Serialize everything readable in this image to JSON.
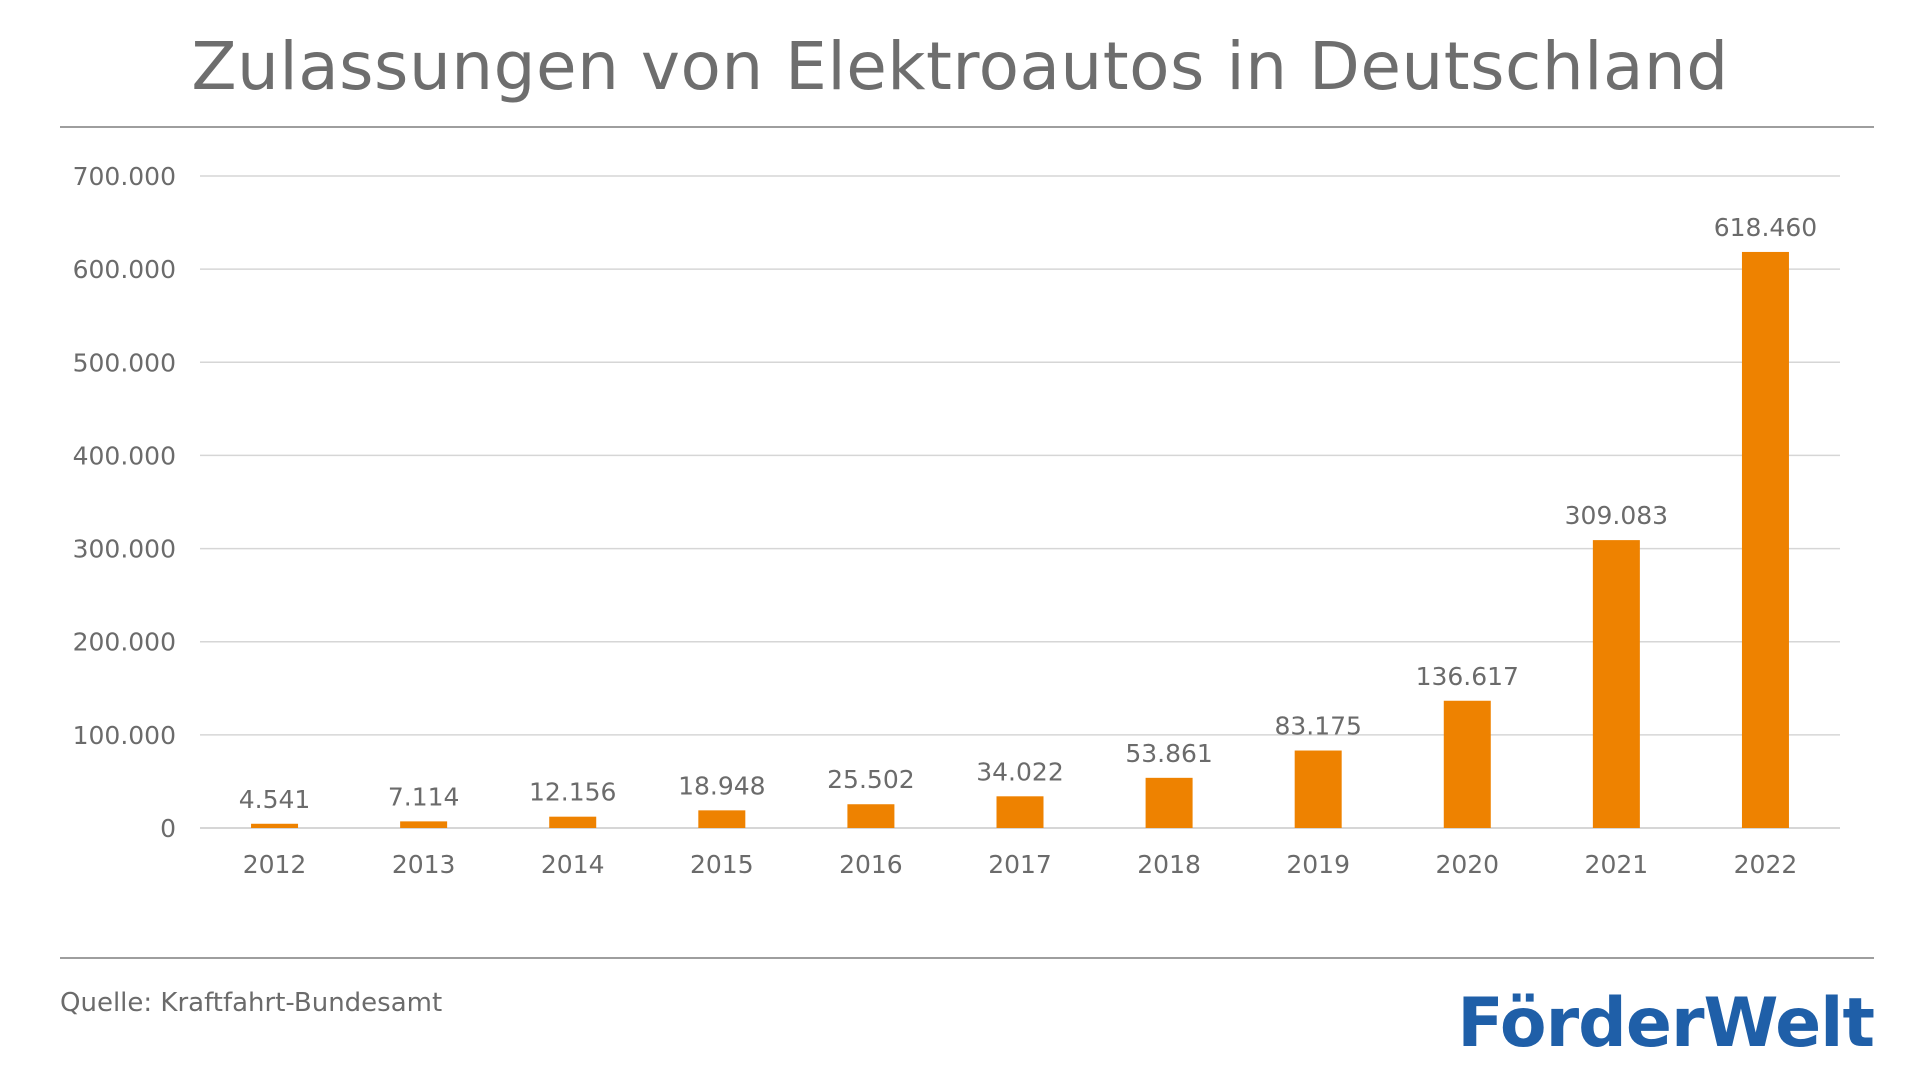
{
  "header": {
    "title": "Zulassungen von Elektroautos in Deutschland"
  },
  "footer": {
    "source": "Quelle: Kraftfahrt-Bundesamt",
    "logo_text": "FörderWelt"
  },
  "colors": {
    "bar": "#ee8200",
    "grid": "#d6d6d6",
    "text": "#6b6b6b",
    "logo": "#1f5fa8"
  },
  "chart_data": {
    "type": "bar",
    "title": "Zulassungen von Elektroautos in Deutschland",
    "xlabel": "",
    "ylabel": "",
    "categories": [
      "2012",
      "2013",
      "2014",
      "2015",
      "2016",
      "2017",
      "2018",
      "2019",
      "2020",
      "2021",
      "2022"
    ],
    "values": [
      4541,
      7114,
      12156,
      18948,
      25502,
      34022,
      53861,
      83175,
      136617,
      309083,
      618460
    ],
    "value_labels": [
      "4.541",
      "7.114",
      "12.156",
      "18.948",
      "25.502",
      "34.022",
      "53.861",
      "83.175",
      "136.617",
      "309.083",
      "618.460"
    ],
    "ylim": [
      0,
      700000
    ],
    "yticks": [
      0,
      100000,
      200000,
      300000,
      400000,
      500000,
      600000,
      700000
    ],
    "ytick_labels": [
      "0",
      "100.000",
      "200.000",
      "300.000",
      "400.000",
      "500.000",
      "600.000",
      "700.000"
    ],
    "grid": true,
    "legend": "none"
  }
}
